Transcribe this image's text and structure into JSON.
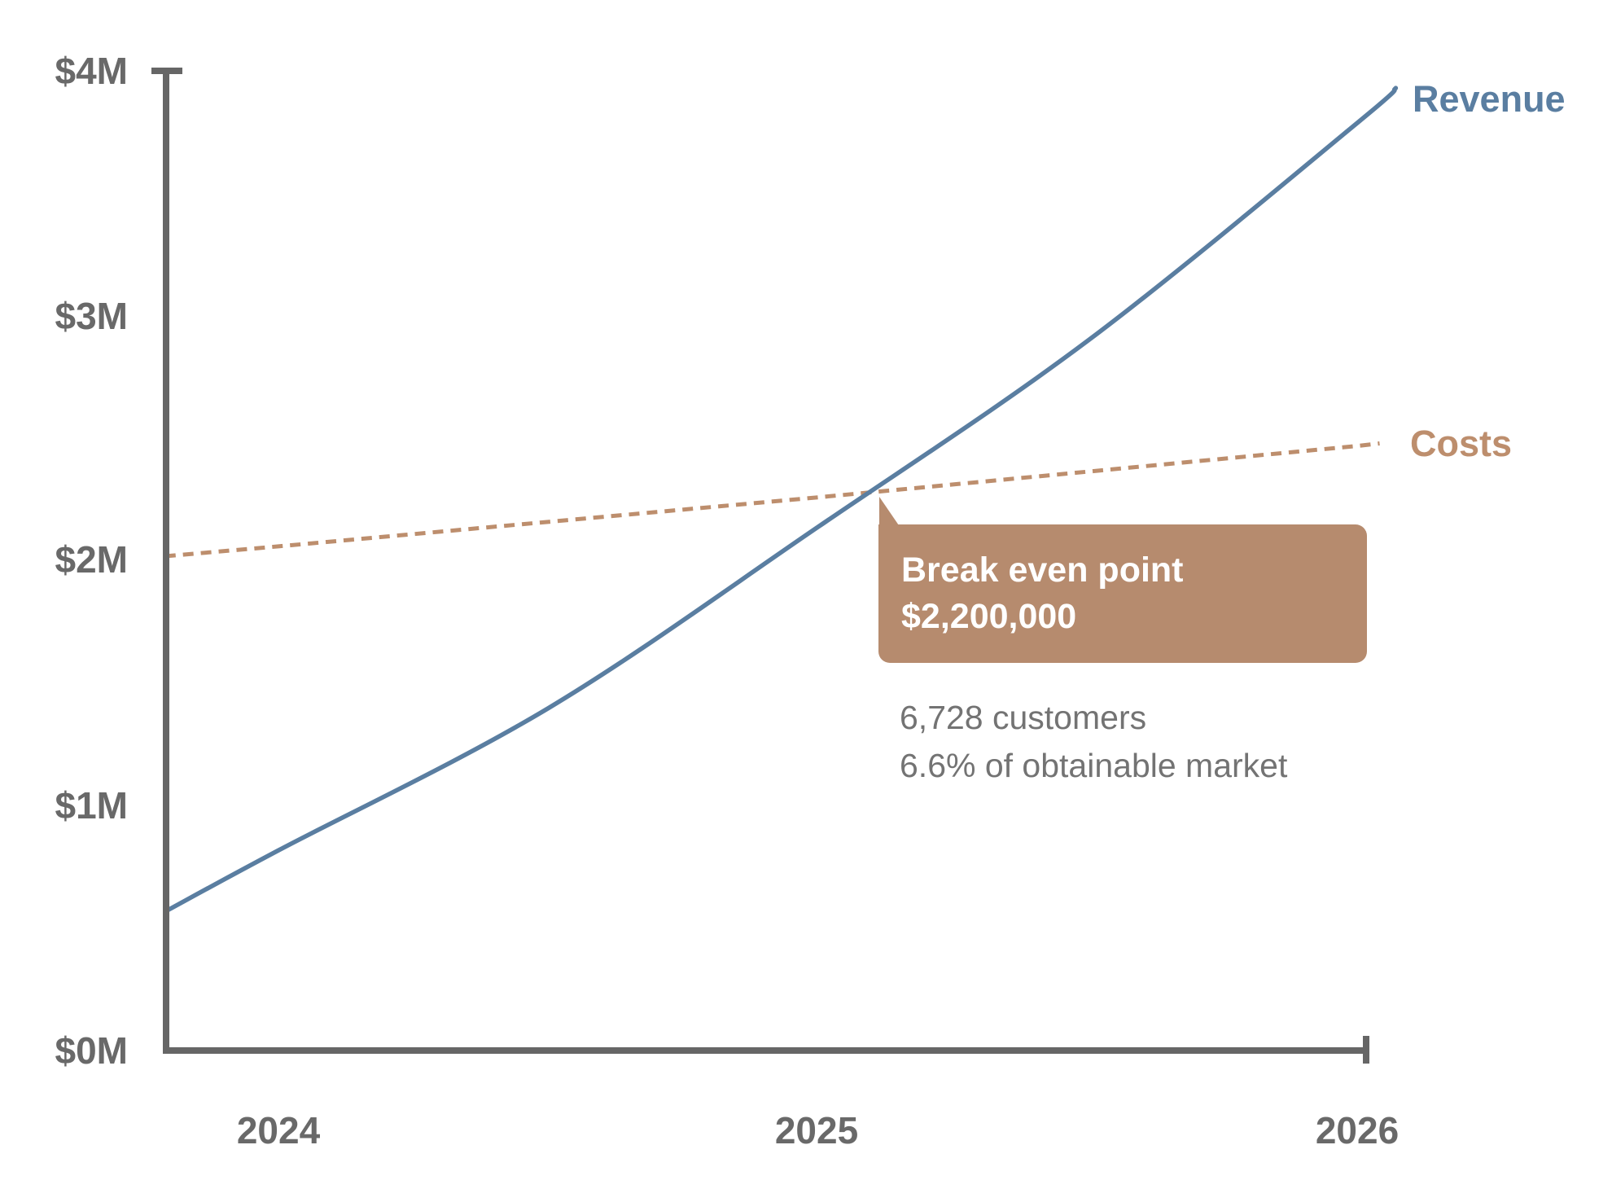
{
  "colors": {
    "axis": "#666666",
    "axis_label": "#696969",
    "revenue": "#5a7ea1",
    "costs": "#bd8e6d",
    "callout_bg": "#b68b6e",
    "annotation_text": "#737373"
  },
  "chart_data": {
    "type": "line",
    "title": "",
    "grid": false,
    "legend": "inline-end-of-line-labels",
    "x_axis": {
      "tick_labels": [
        "2024",
        "2025",
        "2026"
      ],
      "range_years": [
        2023.79,
        2026.07
      ]
    },
    "y_axis": {
      "tick_labels": [
        "$0M",
        "$1M",
        "$2M",
        "$3M",
        "$4M"
      ],
      "unit": "USD millions",
      "range": [
        0,
        4
      ]
    },
    "series": [
      {
        "name": "Revenue",
        "style": "solid",
        "color": "#5a7ea1",
        "x": [
          2023.79,
          2024,
          2024.5,
          2025,
          2025.5,
          2026,
          2026.07
        ],
        "y_millions": [
          0.57,
          0.82,
          1.4,
          2.14,
          2.9,
          3.79,
          3.93
        ]
      },
      {
        "name": "Costs",
        "style": "dashed",
        "color": "#bd8e6d",
        "x": [
          2023.79,
          2024,
          2025,
          2026,
          2026.04
        ],
        "y_millions": [
          2.02,
          2.06,
          2.26,
          2.47,
          2.48
        ]
      }
    ],
    "break_even": {
      "x_year": 2025.12,
      "value_usd": 2200000,
      "label": "Break even point",
      "value_label": "$2,200,000",
      "details": [
        "6,728 customers",
        "6.6% of obtainable market"
      ]
    }
  }
}
